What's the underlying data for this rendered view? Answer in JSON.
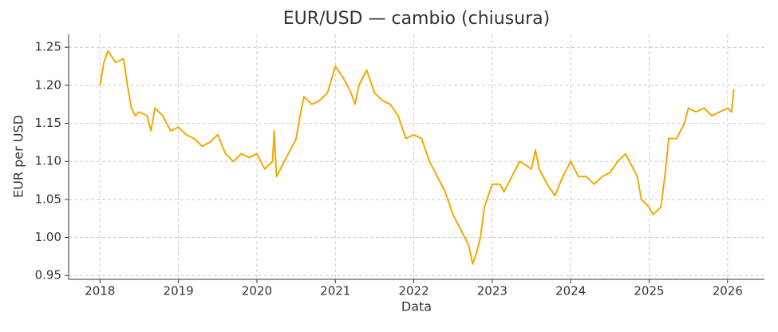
{
  "chart_data": {
    "type": "line",
    "title": "EUR/USD — cambio (chiusura)",
    "x_label": "Data",
    "y_label": "EUR per USD",
    "x": [
      2018.0,
      2018.05,
      2018.1,
      2018.2,
      2018.3,
      2018.35,
      2018.4,
      2018.45,
      2018.5,
      2018.6,
      2018.65,
      2018.7,
      2018.8,
      2018.9,
      2019.0,
      2019.1,
      2019.2,
      2019.3,
      2019.4,
      2019.5,
      2019.6,
      2019.7,
      2019.8,
      2019.9,
      2020.0,
      2020.1,
      2020.2,
      2020.22,
      2020.25,
      2020.3,
      2020.4,
      2020.5,
      2020.55,
      2020.6,
      2020.7,
      2020.8,
      2020.9,
      2021.0,
      2021.1,
      2021.2,
      2021.25,
      2021.3,
      2021.4,
      2021.5,
      2021.6,
      2021.7,
      2021.8,
      2021.9,
      2022.0,
      2022.1,
      2022.2,
      2022.3,
      2022.4,
      2022.5,
      2022.6,
      2022.7,
      2022.75,
      2022.8,
      2022.85,
      2022.9,
      2023.0,
      2023.1,
      2023.15,
      2023.3,
      2023.35,
      2023.5,
      2023.55,
      2023.6,
      2023.7,
      2023.8,
      2023.9,
      2024.0,
      2024.1,
      2024.2,
      2024.3,
      2024.4,
      2024.5,
      2024.6,
      2024.7,
      2024.8,
      2024.85,
      2024.9,
      2025.0,
      2025.05,
      2025.15,
      2025.2,
      2025.25,
      2025.35,
      2025.45,
      2025.5,
      2025.6,
      2025.7,
      2025.8,
      2025.9,
      2026.0,
      2026.05,
      2026.08
    ],
    "series": [
      {
        "name": "EUR/USD",
        "color": "#f2a900",
        "values": [
          1.2,
          1.23,
          1.245,
          1.23,
          1.235,
          1.2,
          1.17,
          1.16,
          1.165,
          1.16,
          1.14,
          1.17,
          1.16,
          1.14,
          1.145,
          1.135,
          1.13,
          1.12,
          1.125,
          1.135,
          1.11,
          1.1,
          1.11,
          1.105,
          1.11,
          1.09,
          1.1,
          1.14,
          1.08,
          1.09,
          1.11,
          1.13,
          1.16,
          1.185,
          1.175,
          1.18,
          1.19,
          1.225,
          1.21,
          1.19,
          1.175,
          1.2,
          1.22,
          1.19,
          1.18,
          1.175,
          1.16,
          1.13,
          1.135,
          1.13,
          1.1,
          1.08,
          1.06,
          1.03,
          1.01,
          0.99,
          0.965,
          0.98,
          1.0,
          1.04,
          1.07,
          1.07,
          1.06,
          1.09,
          1.1,
          1.09,
          1.115,
          1.09,
          1.07,
          1.055,
          1.08,
          1.1,
          1.08,
          1.08,
          1.07,
          1.08,
          1.085,
          1.1,
          1.11,
          1.09,
          1.08,
          1.05,
          1.04,
          1.03,
          1.04,
          1.08,
          1.13,
          1.13,
          1.15,
          1.17,
          1.165,
          1.17,
          1.16,
          1.165,
          1.17,
          1.165,
          1.195
        ]
      }
    ],
    "xlim": [
      2017.6,
      2026.47
    ],
    "xticks": [
      2018,
      2019,
      2020,
      2021,
      2022,
      2023,
      2024,
      2025,
      2026
    ],
    "ylim": [
      0.945,
      1.267
    ],
    "yticks": [
      0.95,
      {
        "value": 1,
        "label": "1.00"
      },
      1.05,
      {
        "value": 1.1,
        "label": "1.10"
      },
      1.15,
      {
        "value": 1.2,
        "label": "1.20"
      },
      1.25
    ],
    "grid": true
  }
}
